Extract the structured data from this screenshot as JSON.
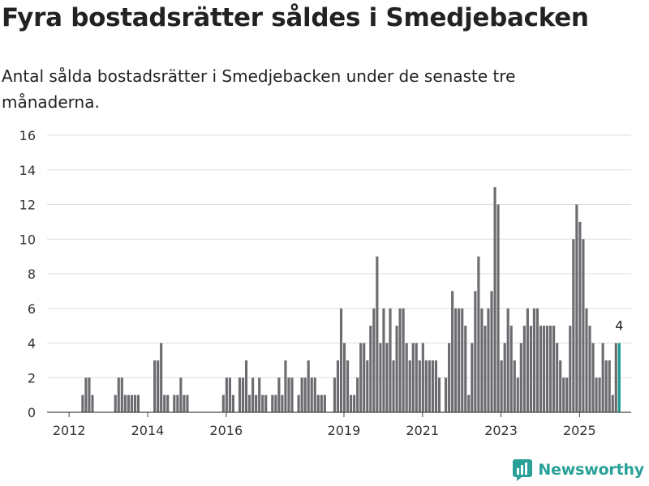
{
  "title": "Fyra bostadsrätter såldes i Smedjebacken",
  "subtitle": "Antal sålda bostadsrätter i Smedjebacken under de senaste tre månaderna.",
  "brand": "Newsworthy",
  "colors": {
    "bar": "#6b6b70",
    "highlight": "#1a9b8f",
    "grid": "#dddddd",
    "brand": "#2aa198"
  },
  "chart_data": {
    "type": "bar",
    "title": "Fyra bostadsrätter såldes i Smedjebacken",
    "subtitle": "Antal sålda bostadsrätter i Smedjebacken under de senaste tre månaderna.",
    "xlabel": "",
    "ylabel": "",
    "ylim": [
      0,
      16
    ],
    "y_ticks": [
      "0",
      "2",
      "4",
      "6",
      "8",
      "10",
      "12",
      "14",
      "16"
    ],
    "x_ticks": [
      {
        "label": "2012",
        "index": 6
      },
      {
        "label": "2014",
        "index": 30
      },
      {
        "label": "2016",
        "index": 54
      },
      {
        "label": "2019",
        "index": 90
      },
      {
        "label": "2021",
        "index": 114
      },
      {
        "label": "2023",
        "index": 138
      },
      {
        "label": "2025",
        "index": 162
      }
    ],
    "grid": true,
    "highlight_last": true,
    "last_value_label": "4",
    "values": [
      0,
      0,
      0,
      0,
      0,
      0,
      0,
      0,
      0,
      0,
      1,
      2,
      2,
      1,
      0,
      0,
      0,
      0,
      0,
      0,
      1,
      2,
      2,
      1,
      1,
      1,
      1,
      1,
      0,
      0,
      0,
      0,
      3,
      3,
      4,
      1,
      1,
      0,
      1,
      1,
      2,
      1,
      1,
      0,
      0,
      0,
      0,
      0,
      0,
      0,
      0,
      0,
      0,
      1,
      2,
      2,
      1,
      0,
      2,
      2,
      3,
      1,
      2,
      1,
      2,
      1,
      1,
      0,
      1,
      1,
      2,
      1,
      3,
      2,
      2,
      0,
      1,
      2,
      2,
      3,
      2,
      2,
      1,
      1,
      1,
      0,
      0,
      2,
      3,
      6,
      4,
      3,
      1,
      1,
      2,
      4,
      4,
      3,
      5,
      6,
      9,
      4,
      6,
      4,
      6,
      3,
      5,
      6,
      6,
      4,
      3,
      4,
      4,
      3,
      4,
      3,
      3,
      3,
      3,
      2,
      0,
      2,
      4,
      7,
      6,
      6,
      6,
      5,
      1,
      4,
      7,
      9,
      6,
      5,
      6,
      7,
      13,
      12,
      3,
      4,
      6,
      5,
      3,
      2,
      4,
      5,
      6,
      5,
      6,
      6,
      5,
      5,
      5,
      5,
      5,
      4,
      3,
      2,
      2,
      5,
      10,
      12,
      11,
      10,
      6,
      5,
      4,
      2,
      2,
      4,
      3,
      3,
      1,
      4,
      4
    ]
  }
}
